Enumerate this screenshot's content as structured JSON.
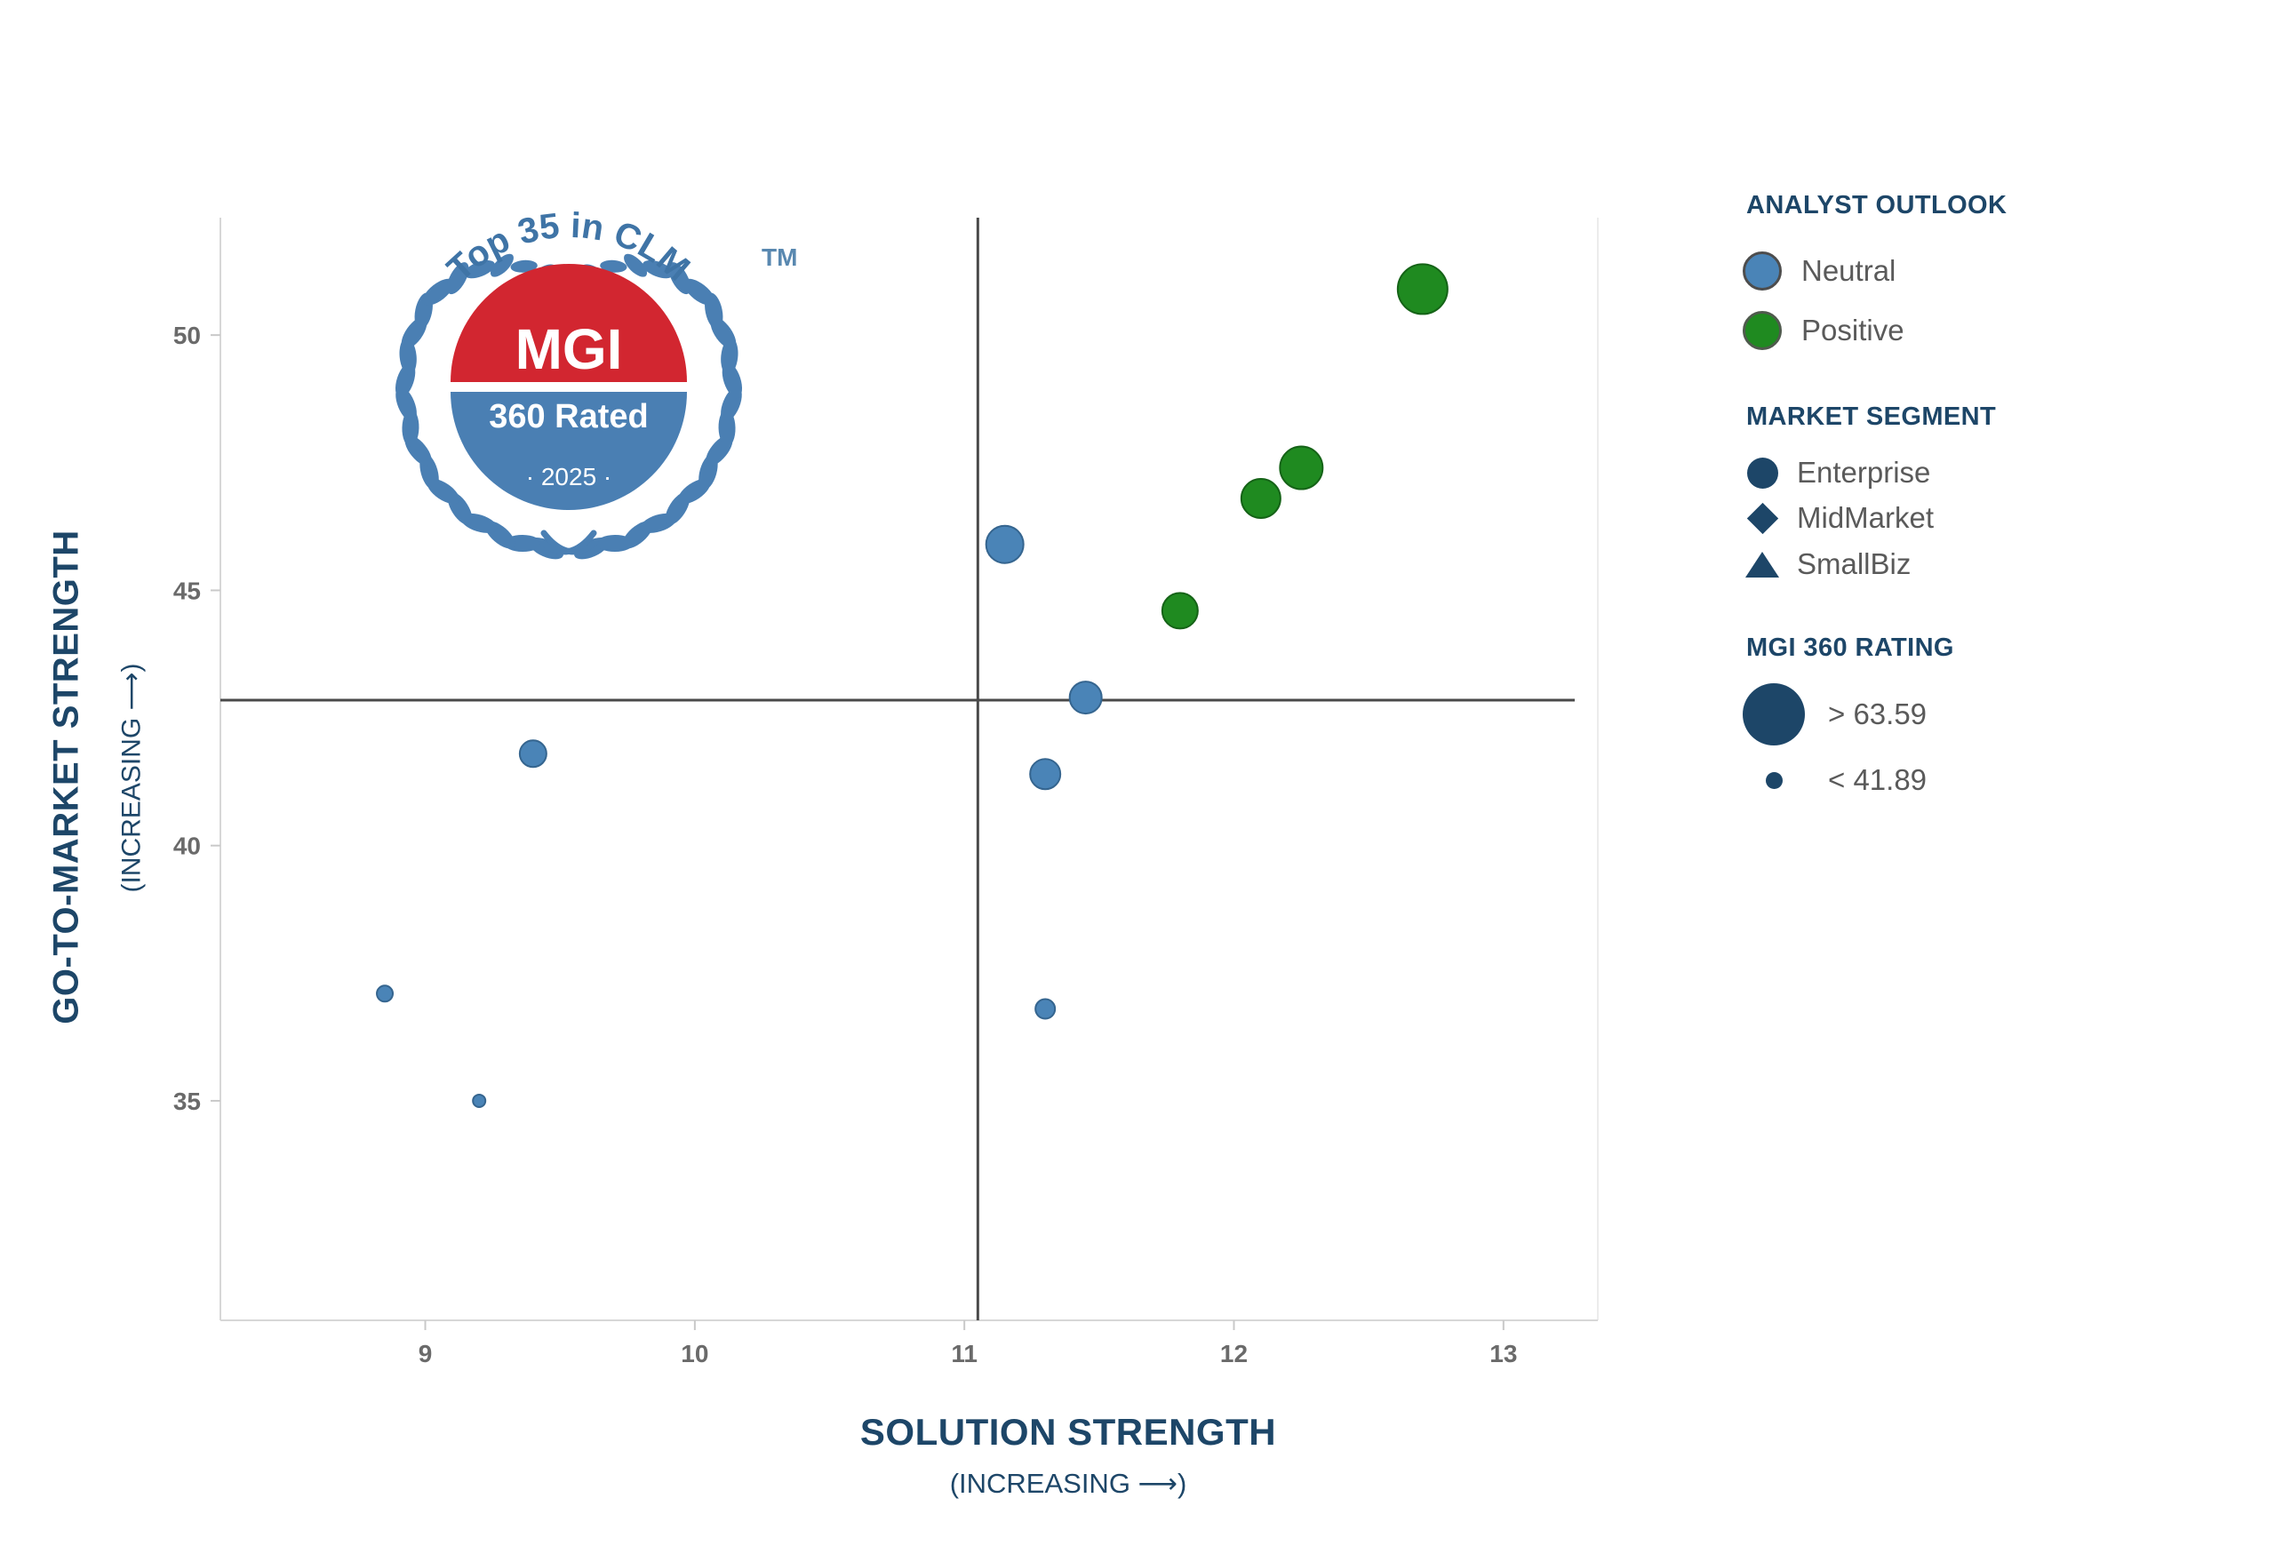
{
  "badge": {
    "arc_text": "Top 35 in CLM",
    "trademark": "TM",
    "center_line1": "MGI",
    "center_line2": "360 Rated",
    "center_line3": "· 2025 ·",
    "red": "#d22630",
    "blue": "#4a7fb3"
  },
  "x_axis": {
    "title": "SOLUTION STRENGTH",
    "subtitle": "(INCREASING ⟶)"
  },
  "y_axis": {
    "title": "GO-TO-MARKET STRENGTH",
    "subtitle": "(INCREASING ⟶)"
  },
  "legend": {
    "analyst_outlook": {
      "title": "ANALYST OUTLOOK",
      "items": [
        {
          "label": "Neutral",
          "color": "#4a84b7"
        },
        {
          "label": "Positive",
          "color": "#1f8a20"
        }
      ]
    },
    "market_segment": {
      "title": "MARKET SEGMENT",
      "items": [
        {
          "label": "Enterprise",
          "shape": "circle"
        },
        {
          "label": "MidMarket",
          "shape": "diamond"
        },
        {
          "label": "SmallBiz",
          "shape": "triangle"
        }
      ]
    },
    "rating": {
      "title": "MGI 360 RATING",
      "items": [
        {
          "label": "> 63.59",
          "size": "large"
        },
        {
          "label": "< 41.89",
          "size": "small"
        }
      ]
    }
  },
  "colors": {
    "navy": "#1d4668",
    "tick_gray": "#6a6a6a",
    "crosshair": "#4a4a4a",
    "plot_border": "#d7d7d7"
  },
  "chart_data": {
    "type": "scatter",
    "title": "MGI 360 Rated — Top 35 in CLM (2025)",
    "xlabel": "SOLUTION STRENGTH (INCREASING)",
    "ylabel": "GO-TO-MARKET STRENGTH (INCREASING)",
    "xlim": [
      8.24,
      13.35
    ],
    "ylim": [
      30.7,
      52.3
    ],
    "x_ticks": [
      9,
      10,
      11,
      12,
      13
    ],
    "y_ticks": [
      35,
      40,
      45,
      50
    ],
    "grid": false,
    "legend_position": "right",
    "quadrant_crosshair": {
      "x": 11.05,
      "y": 42.85
    },
    "size_encoding": {
      "legend_large": "> 63.59",
      "legend_small": "< 41.89",
      "note": "marker radius in px encodes MGI 360 rating"
    },
    "marker_segment": "Enterprise (circle)",
    "series": [
      {
        "name": "Neutral",
        "color": "#4a84b7",
        "stroke": "#35658f",
        "points": [
          {
            "x": 11.15,
            "y": 45.9,
            "r": 21
          },
          {
            "x": 11.45,
            "y": 42.9,
            "r": 18
          },
          {
            "x": 11.3,
            "y": 41.4,
            "r": 17
          },
          {
            "x": 9.4,
            "y": 41.8,
            "r": 15
          },
          {
            "x": 11.3,
            "y": 36.8,
            "r": 11
          },
          {
            "x": 8.85,
            "y": 37.1,
            "r": 9
          },
          {
            "x": 9.2,
            "y": 35.0,
            "r": 7
          }
        ]
      },
      {
        "name": "Positive",
        "color": "#1f8a20",
        "stroke": "#156317",
        "points": [
          {
            "x": 12.7,
            "y": 50.9,
            "r": 28
          },
          {
            "x": 12.25,
            "y": 47.4,
            "r": 24
          },
          {
            "x": 12.1,
            "y": 46.8,
            "r": 22
          },
          {
            "x": 11.8,
            "y": 44.6,
            "r": 20
          }
        ]
      }
    ]
  }
}
